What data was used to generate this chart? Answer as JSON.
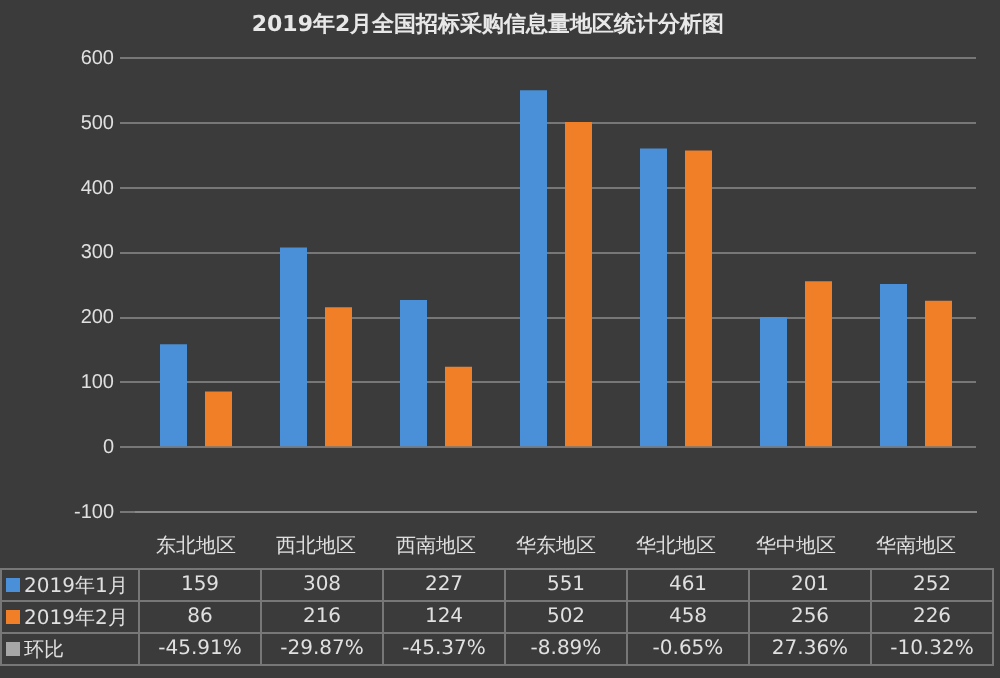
{
  "chart_data": {
    "type": "bar",
    "title": "2019年2月全国招标采购信息量地区统计分析图",
    "categories": [
      "东北地区",
      "西北地区",
      "西南地区",
      "华东地区",
      "华北地区",
      "华中地区",
      "华南地区"
    ],
    "series": [
      {
        "name": "2019年1月",
        "color": "#4a90d9",
        "values": [
          159,
          308,
          227,
          551,
          461,
          201,
          252
        ]
      },
      {
        "name": "2019年2月",
        "color": "#f07f28",
        "values": [
          86,
          216,
          124,
          502,
          458,
          256,
          226
        ]
      },
      {
        "name": "环比",
        "color": "#a6a6a6",
        "values": [
          null,
          null,
          null,
          null,
          null,
          null,
          null
        ],
        "value_labels": [
          "-45.91%",
          "-29.87%",
          "-45.37%",
          "-8.89%",
          "-0.65%",
          "27.36%",
          "-10.32%"
        ]
      }
    ],
    "ylim": [
      -100,
      600
    ],
    "yticks": [
      -100,
      0,
      100,
      200,
      300,
      400,
      500,
      600
    ],
    "grid": "y",
    "data_labels": true,
    "legend": "bottom"
  }
}
